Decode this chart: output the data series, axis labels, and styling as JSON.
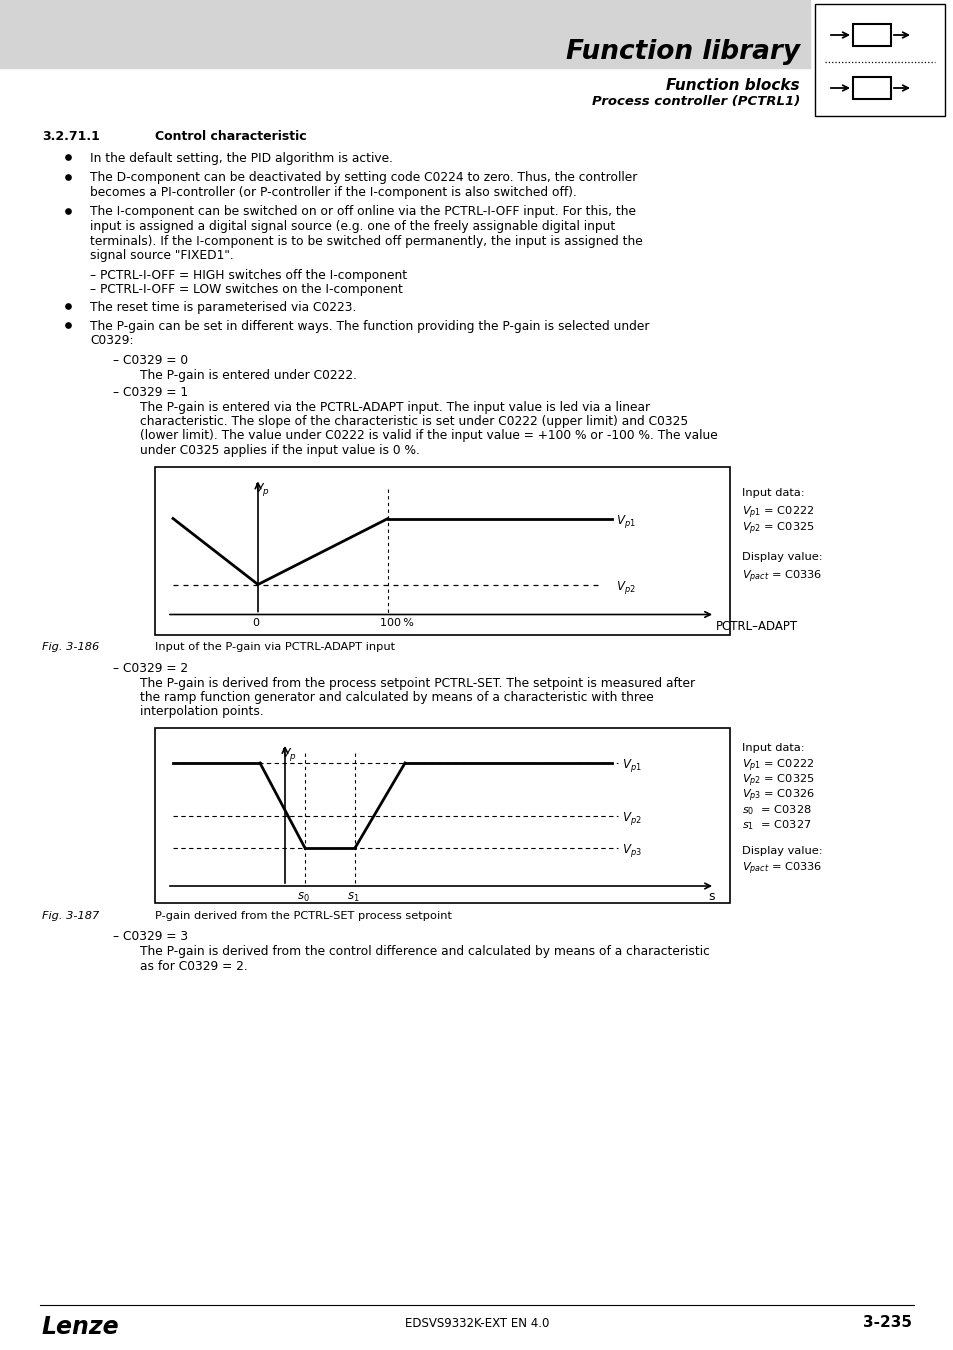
{
  "page_bg": "#ffffff",
  "header_bg": "#d4d4d4",
  "header_title": "Function library",
  "header_sub1": "Function blocks",
  "header_sub2": "Process controller (PCTRL1)",
  "section_number": "3.2.71.1",
  "section_title": "Control characteristic",
  "bullet1": "In the default setting, the PID algorithm is active.",
  "bullet2a": "The D-component can be deactivated by setting code C0224 to zero. Thus, the controller",
  "bullet2b": "becomes a PI-controller (or P-controller if the I-component is also switched off).",
  "bullet3a": "The I-component can be switched on or off online via the PCTRL-I-OFF input. For this, the",
  "bullet3b": "input is assigned a digital signal source (e.g. one of the freely assignable digital input",
  "bullet3c": "terminals). If the I-component is to be switched off permanently, the input is assigned the",
  "bullet3d": "signal source \"FIXED1\".",
  "pctrl_high": "– PCTRL-I-OFF = HIGH switches off the I-component",
  "pctrl_low": "– PCTRL-I-OFF = LOW switches on the I-component",
  "bullet4": "The reset time is parameterised via C0223.",
  "bullet5a": "The P-gain can be set in different ways. The function providing the P-gain is selected under",
  "bullet5b": "C0329:",
  "c0_header": "– C0329 = 0",
  "c0_body": "The P-gain is entered under C0222.",
  "c1_header": "– C0329 = 1",
  "c1_body1": "The P-gain is entered via the PCTRL-ADAPT input. The input value is led via a linear",
  "c1_body2": "characteristic. The slope of the characteristic is set under C0222 (upper limit) and C0325",
  "c1_body3": "(lower limit). The value under C0222 is valid if the input value = +100 % or -100 %. The value",
  "c1_body4": "under C0325 applies if the input value is 0 %.",
  "fig186_label": "Fig. 3-186",
  "fig186_caption": "Input of the P-gain via PCTRL-ADAPT input",
  "c2_header": "– C0329 = 2",
  "c2_body1": "The P-gain is derived from the process setpoint PCTRL-SET. The setpoint is measured after",
  "c2_body2": "the ramp function generator and calculated by means of a characteristic with three",
  "c2_body3": "interpolation points.",
  "fig187_label": "Fig. 3-187",
  "fig187_caption": "P-gain derived from the PCTRL-SET process setpoint",
  "c3_header": "– C0329 = 3",
  "c3_body1": "The P-gain is derived from the control difference and calculated by means of a characteristic",
  "c3_body2": "as for C0329 = 2.",
  "footer_left": "Lenze",
  "footer_center": "EDSVS9332K-EXT EN 4.0",
  "footer_right": "3-235"
}
